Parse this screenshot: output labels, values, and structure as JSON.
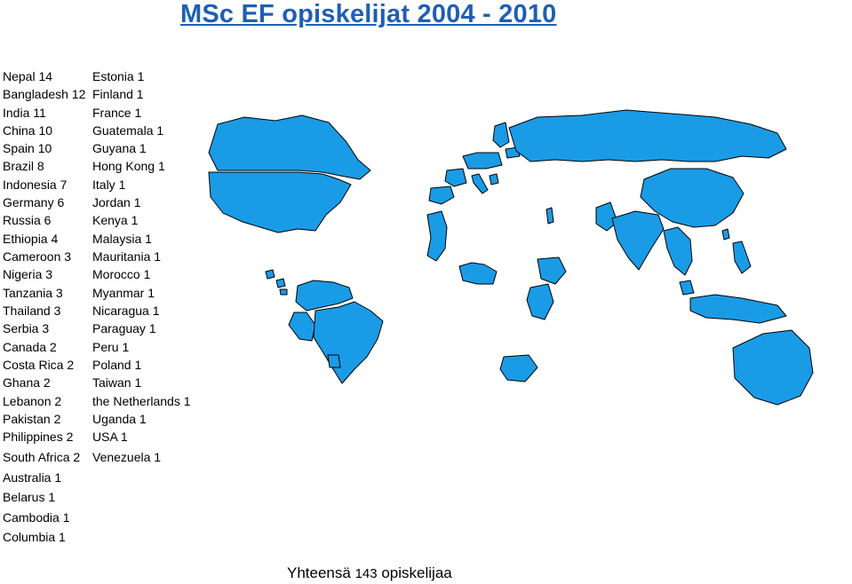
{
  "title": "MSc EF opiskelijat 2004 - 2010",
  "left_column": [
    "Nepal 14",
    "Bangladesh 12",
    "India 11",
    "China 10",
    "Spain 10",
    "Brazil 8",
    "Indonesia 7",
    "Germany 6",
    "Russia 6",
    "Ethiopia 4",
    "Cameroon 3",
    "Nigeria 3",
    "Tanzania 3",
    "Thailand 3",
    "Serbia 3",
    "Canada 2",
    "Costa Rica 2",
    "Ghana 2",
    "Lebanon 2",
    "Pakistan 2",
    "Philippines 2",
    "South Africa 2",
    "Australia 1",
    "Belarus 1",
    "Cambodia 1",
    "Columbia 1"
  ],
  "right_column": [
    "Estonia 1",
    "Finland 1",
    "France 1",
    "Guatemala 1",
    "Guyana 1",
    "Hong Kong 1",
    "Italy 1",
    "Jordan 1",
    "Kenya 1",
    "Malaysia 1",
    "Mauritania 1",
    "Morocco 1",
    "Myanmar 1",
    "Nicaragua 1",
    "Paraguay 1",
    "Peru 1",
    "Poland 1",
    "Taiwan 1",
    "the Netherlands 1",
    "Uganda 1",
    "USA 1",
    "Venezuela 1"
  ],
  "total": {
    "prefix": "Yhteensä",
    "count": "143",
    "suffix": "opiskelijaa"
  },
  "colors": {
    "title": "#1f5fb4",
    "highlight": "#1a9be6",
    "border": "#000000",
    "land": "#ffffff"
  }
}
